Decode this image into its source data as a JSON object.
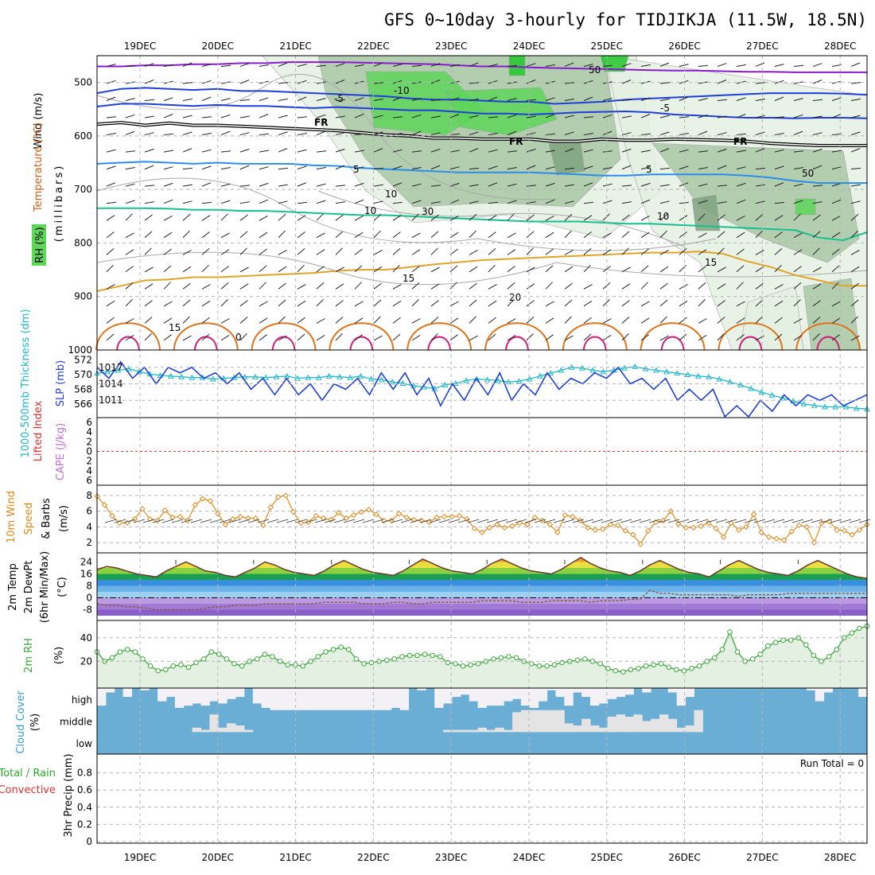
{
  "title": "GFS 0~10day 3-hourly for TIDJIKJA (11.5W, 18.5N)",
  "colors": {
    "rh_light": "#e4f0e2",
    "rh_mid": "#a9c8a6",
    "rh_dark": "#7fa37f",
    "rh_green": "#5ed65a",
    "rh_bright": "#22c82a",
    "t_purple": "#8a1ad0",
    "t_blue": "#1f3fd6",
    "t_sky": "#2a8ee8",
    "t_teal": "#18c090",
    "t_gold": "#e0a428",
    "t_orange": "#e07418",
    "t_magenta": "#d01a7a",
    "slp": "#1f3fd6",
    "thick": "#22b8c8",
    "wind": "#e08a1a",
    "dew": "#8a5a4a",
    "rh2m": "#3aa83a",
    "cloud": "#6aaed6",
    "cloud_bg": "#f4f1f6",
    "cloud_mid": "#e4e4e4"
  },
  "chart_data": {
    "type": "line",
    "time_axis": {
      "labels": [
        "19DEC",
        "20DEC",
        "21DEC",
        "22DEC",
        "23DEC",
        "24DEC",
        "25DEC",
        "26DEC",
        "27DEC",
        "28DEC"
      ],
      "start": "2023-12-18 12Z",
      "step_hours": 3
    },
    "panels": [
      {
        "name": "upper_air",
        "labels": [
          "Wind (m/s)",
          "Temperature (°C)",
          "RH (%)",
          "(millibars)"
        ],
        "y_ticks": [
          500,
          600,
          700,
          800,
          900,
          1000
        ],
        "ylim": [
          450,
          1000
        ],
        "isotherms": [
          {
            "value": -15,
            "label": "",
            "pressure": [
              470,
              470,
              468,
              468,
              466,
              466,
              464,
              464,
              462,
              462,
              462,
              463,
              464,
              465,
              466,
              468,
              470,
              470,
              472,
              473,
              474,
              475,
              476,
              477,
              478,
              478,
              479,
              480,
              480,
              481,
              481,
              481,
              481
            ]
          },
          {
            "value": -10,
            "label": "-10",
            "pressure": [
              520,
              512,
              510,
              512,
              514,
              512,
              516,
              516,
              518,
              520,
              522,
              524,
              526,
              530,
              532,
              532,
              534,
              536,
              536,
              540,
              538,
              536,
              532,
              530,
              528,
              526,
              524,
              522,
              520,
              520,
              520,
              521,
              523
            ]
          },
          {
            "value": -5,
            "label": "-5",
            "pressure": [
              545,
              540,
              540,
              542,
              544,
              542,
              544,
              544,
              546,
              548,
              546,
              548,
              550,
              552,
              552,
              555,
              558,
              558,
              560,
              558,
              556,
              555,
              554,
              556,
              560,
              562,
              564,
              566,
              566,
              567,
              566,
              566,
              567
            ]
          },
          {
            "value": 0,
            "label": "FR",
            "pressure": [
              578,
              575,
              580,
              576,
              580,
              580,
              582,
              584,
              586,
              588,
              590,
              594,
              598,
              600,
              604,
              604,
              606,
              606,
              606,
              610,
              610,
              606,
              608,
              608,
              606,
              607,
              608,
              610,
              614,
              616,
              618,
              618,
              618
            ]
          },
          {
            "value": 5,
            "label": "5",
            "pressure": [
              652,
              650,
              648,
              650,
              652,
              650,
              652,
              652,
              652,
              655,
              656,
              660,
              662,
              664,
              666,
              668,
              668,
              668,
              668,
              670,
              672,
              674,
              674,
              672,
              672,
              672,
              672,
              674,
              678,
              684,
              688,
              688,
              688
            ]
          },
          {
            "value": 10,
            "label": "10",
            "pressure": [
              735,
              735,
              735,
              736,
              738,
              738,
              740,
              740,
              742,
              744,
              746,
              748,
              748,
              750,
              752,
              754,
              756,
              758,
              760,
              760,
              760,
              762,
              764,
              764,
              766,
              768,
              770,
              772,
              774,
              776,
              790,
              795,
              780
            ]
          },
          {
            "value": 15,
            "label": "15",
            "pressure": [
              890,
              880,
              870,
              868,
              864,
              864,
              862,
              860,
              858,
              856,
              852,
              850,
              850,
              845,
              840,
              836,
              832,
              830,
              828,
              826,
              824,
              822,
              820,
              818,
              818,
              816,
              820,
              834,
              845,
              860,
              870,
              880,
              880
            ]
          }
        ],
        "contour_labels": [
          "-10",
          "-5",
          "-5",
          "FR",
          "FR",
          "FR",
          "5",
          "5",
          "10",
          "10",
          "15",
          "15",
          "20",
          "15",
          "0",
          "10",
          "50",
          "30",
          "50"
        ]
      },
      {
        "name": "slp_thickness",
        "labels": [
          "SLP (mb)",
          "1000-500mb Thickness (dm)"
        ],
        "y_ticks_left": [
          566,
          568,
          570,
          572
        ],
        "y_ticks_right": [
          1011,
          1014,
          1017
        ],
        "slp": [
          1017,
          1015,
          1018,
          1015,
          1017,
          1014,
          1017,
          1016,
          1017,
          1015,
          1016,
          1014,
          1016,
          1013,
          1015,
          1012,
          1015,
          1012,
          1014,
          1011,
          1014,
          1013,
          1015,
          1012,
          1016,
          1013,
          1016,
          1012,
          1015,
          1010,
          1014,
          1011,
          1015,
          1012,
          1016,
          1011,
          1014,
          1012,
          1016,
          1013,
          1015,
          1014,
          1016,
          1015,
          1017,
          1014,
          1015,
          1013,
          1015,
          1011,
          1013,
          1011,
          1013,
          1008,
          1010,
          1008,
          1011,
          1009,
          1012,
          1010,
          1012,
          1011,
          1012,
          1010,
          1011,
          1012
        ],
        "thickness": [
          570.2,
          570.4,
          570.6,
          570.8,
          570.4,
          570.1,
          569.9,
          569.8,
          569.7,
          569.6,
          569.6,
          569.4,
          569.5,
          569.6,
          569.7,
          569.7,
          569.6,
          569.7,
          569.8,
          569.5,
          569.6,
          569.6,
          569.8,
          569.7,
          569.6,
          569.8,
          569.4,
          569.3,
          569.0,
          568.8,
          568.5,
          568.3,
          568.1,
          568.6,
          568.8,
          569.2,
          569.4,
          569.3,
          569.2,
          569.0,
          569.1,
          569.4,
          569.8,
          570.2,
          570.6,
          571.0,
          570.9,
          570.6,
          570.4,
          570.6,
          570.9,
          571.1,
          570.8,
          570.6,
          570.4,
          570.2,
          570.0,
          569.8,
          569.7,
          569.4,
          569.0,
          568.6,
          568.1,
          567.6,
          567.2,
          566.8,
          566.4,
          566.0,
          565.8,
          565.6,
          565.6,
          565.6,
          565.4,
          565.3
        ]
      },
      {
        "name": "cape_li",
        "labels": [
          "Lifted Index",
          "CAPE (J/kg)"
        ],
        "y_ticks": [
          6,
          4,
          2,
          0,
          2,
          4,
          6
        ],
        "lifted_index": 0,
        "cape": 0
      },
      {
        "name": "wind10m",
        "labels": [
          "10m Wind",
          "Speed",
          "& Barbs",
          "(m/s)"
        ],
        "y_ticks": [
          2,
          4,
          6,
          8
        ],
        "speed": [
          7.9,
          6.8,
          5.4,
          4.5,
          4.5,
          5.0,
          6.3,
          5.0,
          4.8,
          6.1,
          5.2,
          5.3,
          4.8,
          6.8,
          7.6,
          7.3,
          5.7,
          4.3,
          5.0,
          5.3,
          5.1,
          5.1,
          4.2,
          6.5,
          7.8,
          8.0,
          5.9,
          4.5,
          4.6,
          5.4,
          5.1,
          4.9,
          5.8,
          5.1,
          5.5,
          5.9,
          6.2,
          5.6,
          4.8,
          4.8,
          5.7,
          5.2,
          4.9,
          4.8,
          4.6,
          5.2,
          5.3,
          5.3,
          5.4,
          5.0,
          3.8,
          3.3,
          3.9,
          4.3,
          3.9,
          4.1,
          4.5,
          4.3,
          5.2,
          4.8,
          4.3,
          3.3,
          5.5,
          5.3,
          4.8,
          3.9,
          3.6,
          3.7,
          4.3,
          4.2,
          3.5,
          3.0,
          1.8,
          3.5,
          4.6,
          4.8,
          6.0,
          4.4,
          3.9,
          3.9,
          4.1,
          4.5,
          3.8,
          2.7,
          4.5,
          3.6,
          4.0,
          5.6,
          3.3,
          2.7,
          2.5,
          2.3,
          3.4,
          4.2,
          4.0,
          2.0,
          4.5,
          4.7,
          3.6,
          3.5,
          3.0,
          3.6,
          4.3
        ]
      },
      {
        "name": "temp2m",
        "labels": [
          "2m Temp",
          "2m DewPt",
          "(6hr Min/Max)",
          "(°C)"
        ],
        "y_ticks": [
          24,
          16,
          8,
          0,
          -8
        ],
        "temp": [
          19,
          21,
          20,
          18,
          16,
          15,
          14,
          18,
          21,
          24,
          21,
          18,
          17,
          15,
          14,
          17,
          20,
          24,
          22,
          19,
          17,
          16,
          15,
          18,
          22,
          25,
          22,
          19,
          17,
          16,
          15,
          18,
          22,
          26,
          23,
          20,
          18,
          17,
          16,
          19,
          23,
          26,
          23,
          20,
          18,
          17,
          16,
          19,
          23,
          27,
          23,
          20,
          18,
          17,
          15,
          18,
          22,
          25,
          22,
          19,
          17,
          16,
          14,
          18,
          22,
          25,
          22,
          19,
          17,
          16,
          15,
          18,
          22,
          25,
          22,
          19,
          16,
          14,
          13
        ],
        "dewpoint": [
          -4,
          -5,
          -5,
          -6,
          -6,
          -7,
          -8,
          -8,
          -8,
          -8,
          -8,
          -7,
          -6,
          -6,
          -5,
          -5,
          -5,
          -4,
          -4,
          -4,
          -4,
          -4,
          -4,
          -3,
          -3,
          -3,
          -3,
          -4,
          -4,
          -4,
          -3,
          -3,
          -4,
          -4,
          -3,
          -3,
          -3,
          -3,
          -3,
          -2,
          -2,
          -2,
          -2,
          -3,
          -3,
          -3,
          -2,
          -2,
          -2,
          -2,
          -3,
          -2,
          -2,
          -2,
          -1,
          -1,
          5,
          3,
          3,
          2,
          2,
          2,
          2,
          2,
          2,
          1,
          2,
          2,
          2,
          2,
          3,
          3,
          3,
          3,
          3,
          3,
          3,
          3,
          3
        ]
      },
      {
        "name": "rh2m",
        "labels": [
          "2m RH",
          "(%)"
        ],
        "y_ticks": [
          20,
          40
        ],
        "rh": [
          28,
          20,
          23,
          28,
          30,
          28,
          22,
          16,
          12,
          13,
          16,
          17,
          15,
          19,
          22,
          28,
          26,
          22,
          18,
          16,
          20,
          22,
          26,
          24,
          20,
          17,
          17,
          16,
          20,
          24,
          28,
          30,
          32,
          30,
          22,
          18,
          19,
          20,
          21,
          22,
          24,
          25,
          25,
          26,
          25,
          24,
          19,
          18,
          16,
          17,
          18,
          20,
          22,
          23,
          24,
          23,
          20,
          18,
          16,
          16,
          17,
          19,
          20,
          21,
          22,
          20,
          18,
          14,
          12,
          11,
          13,
          14,
          16,
          17,
          18,
          15,
          13,
          12,
          14,
          16,
          20,
          23,
          30,
          45,
          28,
          20,
          22,
          26,
          33,
          36,
          38,
          38,
          40,
          34,
          25,
          20,
          24,
          30,
          40,
          44,
          48,
          50
        ]
      },
      {
        "name": "cloud",
        "labels": [
          "Cloud Cover",
          "(%)"
        ],
        "y_ticks": [
          "high",
          "middle",
          "low"
        ],
        "high": [
          0.2,
          0.8,
          1,
          0.6,
          1,
          0.9,
          1,
          0.4,
          0.6,
          0.1,
          0.2,
          0.3,
          0.2,
          0.4,
          0.3,
          0.5,
          0.6,
          1,
          0.3,
          0.1,
          0,
          0,
          0,
          0,
          0,
          0,
          0,
          0,
          0,
          0,
          0,
          0,
          0,
          0,
          0.1,
          0,
          1,
          0.9,
          1,
          0.1,
          0.3,
          0.6,
          0.7,
          0.4,
          0.1,
          0.2,
          0.2,
          0.4,
          0.5,
          0.2,
          0.1,
          0.4,
          0.9,
          0.6,
          0.2,
          0.8,
          0.6,
          0.2,
          0.3,
          0.5,
          0.6,
          0.7,
          1,
          0.8,
          1,
          1,
          0.8,
          0.2,
          0.6,
          1,
          1,
          1,
          1,
          1,
          1,
          1,
          1,
          1,
          1,
          1,
          1,
          1,
          0.9,
          0.4,
          0.8,
          1,
          1,
          1,
          0.6
        ],
        "mid": [
          0,
          0,
          0,
          0,
          0,
          0,
          0,
          0,
          0,
          0,
          0,
          0.2,
          0.1,
          0.8,
          0.2,
          0.4,
          0.3,
          0.1,
          0,
          0,
          0,
          0,
          0,
          0,
          0,
          0,
          0,
          0,
          0,
          0,
          0,
          0,
          0,
          0,
          0,
          0,
          0,
          0,
          0,
          0,
          0.1,
          0.1,
          0.1,
          0.1,
          0.2,
          0.1,
          0.2,
          0.1,
          0.9,
          1,
          1,
          1,
          1,
          1,
          0.4,
          0.3,
          0.6,
          0.3,
          0.2,
          0.7,
          0.8,
          0.7,
          0.8,
          0.5,
          0.6,
          0.8,
          0.6,
          0.2,
          0.3,
          1,
          0,
          0,
          0,
          0,
          0,
          0,
          0,
          0,
          0,
          0,
          0,
          0,
          0,
          0,
          0,
          0,
          0,
          0,
          0
        ]
      },
      {
        "name": "precip",
        "labels": [
          "3hr Precip (mm)",
          "Total / Rain",
          "Convective"
        ],
        "y_ticks": [
          0,
          0.2,
          0.4,
          0.6,
          0.8
        ],
        "run_total": "Run Total = 0",
        "values": []
      }
    ]
  }
}
